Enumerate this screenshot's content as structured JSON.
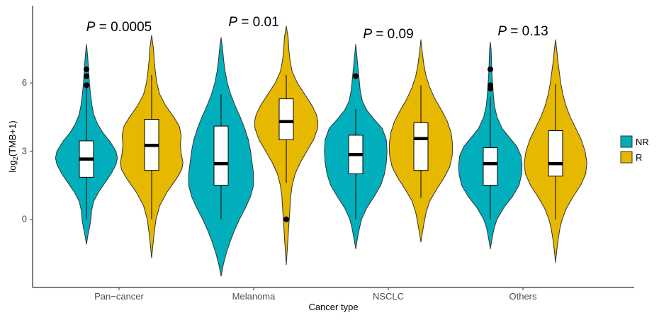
{
  "chart_data": {
    "type": "violin",
    "xlabel": "Cancer type",
    "ylabel_main": "log",
    "ylabel_sub": "2",
    "ylabel_rest": "(TMB+1)",
    "yticks": [
      0,
      3,
      6
    ],
    "ylim": [
      -3.0,
      9.4
    ],
    "categories": [
      "Pan−cancer",
      "Melanoma",
      "NSCLC",
      "Others"
    ],
    "legend": {
      "position": "right",
      "entries": [
        {
          "key": "NR",
          "label": "NR",
          "color": "#00AFBB"
        },
        {
          "key": "R",
          "label": "R",
          "color": "#E7B800"
        }
      ]
    },
    "p_letter": "P",
    "p_values": [
      "= 0.0005",
      "= 0.01",
      "= 0.09",
      "= 0.13"
    ],
    "groups": [
      {
        "category": "Pan−cancer",
        "NR": {
          "range": [
            -1.1,
            7.7
          ],
          "q1": 1.85,
          "median": 2.65,
          "q3": 3.45,
          "whisker": [
            0.0,
            5.9
          ],
          "outliers": [
            5.9,
            6.3,
            6.6
          ],
          "density": [
            [
              -1.1,
              0
            ],
            [
              -0.7,
              0.04
            ],
            [
              -0.3,
              0.09
            ],
            [
              0,
              0.12
            ],
            [
              0.4,
              0.14
            ],
            [
              0.8,
              0.2
            ],
            [
              1.2,
              0.33
            ],
            [
              1.6,
              0.5
            ],
            [
              2.0,
              0.67
            ],
            [
              2.4,
              0.8
            ],
            [
              2.7,
              0.84
            ],
            [
              3.0,
              0.8
            ],
            [
              3.4,
              0.65
            ],
            [
              3.8,
              0.45
            ],
            [
              4.2,
              0.3
            ],
            [
              4.6,
              0.2
            ],
            [
              5.0,
              0.15
            ],
            [
              5.5,
              0.11
            ],
            [
              6.0,
              0.08
            ],
            [
              6.5,
              0.06
            ],
            [
              7.0,
              0.04
            ],
            [
              7.4,
              0.02
            ],
            [
              7.7,
              0
            ]
          ]
        },
        "R": {
          "range": [
            -1.7,
            8.1
          ],
          "q1": 2.15,
          "median": 3.25,
          "q3": 4.4,
          "whisker": [
            0.0,
            6.35
          ],
          "outliers": [],
          "density": [
            [
              -1.7,
              0
            ],
            [
              -1.2,
              0.03
            ],
            [
              -0.6,
              0.07
            ],
            [
              0,
              0.12
            ],
            [
              0.6,
              0.22
            ],
            [
              1.2,
              0.42
            ],
            [
              1.8,
              0.68
            ],
            [
              2.2,
              0.82
            ],
            [
              2.5,
              0.85
            ],
            [
              2.9,
              0.8
            ],
            [
              3.3,
              0.78
            ],
            [
              3.7,
              0.8
            ],
            [
              4.1,
              0.75
            ],
            [
              4.5,
              0.6
            ],
            [
              5.0,
              0.38
            ],
            [
              5.5,
              0.22
            ],
            [
              6.0,
              0.14
            ],
            [
              6.5,
              0.1
            ],
            [
              7.0,
              0.07
            ],
            [
              7.5,
              0.05
            ],
            [
              8.1,
              0
            ]
          ]
        }
      },
      {
        "category": "Melanoma",
        "NR": {
          "range": [
            -2.5,
            8.0
          ],
          "q1": 1.5,
          "median": 2.45,
          "q3": 4.1,
          "whisker": [
            0.0,
            5.5
          ],
          "outliers": [],
          "density": [
            [
              -2.5,
              0
            ],
            [
              -2.0,
              0.06
            ],
            [
              -1.5,
              0.14
            ],
            [
              -1.0,
              0.24
            ],
            [
              -0.5,
              0.36
            ],
            [
              0,
              0.5
            ],
            [
              0.5,
              0.66
            ],
            [
              1.0,
              0.8
            ],
            [
              1.5,
              0.88
            ],
            [
              2.0,
              0.88
            ],
            [
              2.5,
              0.84
            ],
            [
              3.0,
              0.8
            ],
            [
              3.5,
              0.74
            ],
            [
              4.0,
              0.64
            ],
            [
              4.5,
              0.52
            ],
            [
              5.0,
              0.38
            ],
            [
              5.5,
              0.26
            ],
            [
              6.0,
              0.17
            ],
            [
              6.5,
              0.11
            ],
            [
              7.0,
              0.07
            ],
            [
              7.5,
              0.04
            ],
            [
              8.0,
              0
            ]
          ]
        },
        "R": {
          "range": [
            -2.0,
            8.5
          ],
          "q1": 3.5,
          "median": 4.3,
          "q3": 5.3,
          "whisker": [
            1.6,
            6.35
          ],
          "outliers": [
            0.0
          ],
          "density": [
            [
              -2.0,
              0
            ],
            [
              -1.5,
              0.02
            ],
            [
              -1.0,
              0.04
            ],
            [
              -0.5,
              0.06
            ],
            [
              0,
              0.08
            ],
            [
              0.5,
              0.1
            ],
            [
              1.0,
              0.12
            ],
            [
              1.5,
              0.16
            ],
            [
              2.0,
              0.24
            ],
            [
              2.5,
              0.38
            ],
            [
              3.0,
              0.56
            ],
            [
              3.5,
              0.74
            ],
            [
              4.0,
              0.85
            ],
            [
              4.3,
              0.86
            ],
            [
              4.6,
              0.82
            ],
            [
              5.0,
              0.7
            ],
            [
              5.5,
              0.5
            ],
            [
              6.0,
              0.3
            ],
            [
              6.5,
              0.16
            ],
            [
              7.0,
              0.1
            ],
            [
              7.5,
              0.07
            ],
            [
              8.0,
              0.05
            ],
            [
              8.5,
              0
            ]
          ]
        }
      },
      {
        "category": "NSCLC",
        "NR": {
          "range": [
            -1.3,
            7.7
          ],
          "q1": 2.0,
          "median": 2.85,
          "q3": 3.7,
          "whisker": [
            0.0,
            4.85
          ],
          "outliers": [
            6.3
          ],
          "density": [
            [
              -1.3,
              0
            ],
            [
              -0.9,
              0.04
            ],
            [
              -0.4,
              0.1
            ],
            [
              0,
              0.16
            ],
            [
              0.5,
              0.3
            ],
            [
              1.0,
              0.5
            ],
            [
              1.5,
              0.68
            ],
            [
              2.0,
              0.78
            ],
            [
              2.5,
              0.83
            ],
            [
              3.0,
              0.85
            ],
            [
              3.5,
              0.83
            ],
            [
              4.0,
              0.72
            ],
            [
              4.4,
              0.5
            ],
            [
              4.8,
              0.3
            ],
            [
              5.2,
              0.18
            ],
            [
              5.7,
              0.12
            ],
            [
              6.2,
              0.09
            ],
            [
              6.7,
              0.06
            ],
            [
              7.2,
              0.03
            ],
            [
              7.7,
              0
            ]
          ]
        },
        "R": {
          "range": [
            -1.0,
            7.9
          ],
          "q1": 2.15,
          "median": 3.55,
          "q3": 4.25,
          "whisker": [
            0.95,
            5.9
          ],
          "outliers": [],
          "density": [
            [
              -1.0,
              0
            ],
            [
              -0.6,
              0.04
            ],
            [
              -0.2,
              0.08
            ],
            [
              0.3,
              0.14
            ],
            [
              0.8,
              0.24
            ],
            [
              1.3,
              0.42
            ],
            [
              1.8,
              0.62
            ],
            [
              2.3,
              0.78
            ],
            [
              2.8,
              0.85
            ],
            [
              3.3,
              0.86
            ],
            [
              3.8,
              0.82
            ],
            [
              4.3,
              0.72
            ],
            [
              4.8,
              0.56
            ],
            [
              5.3,
              0.38
            ],
            [
              5.8,
              0.24
            ],
            [
              6.3,
              0.14
            ],
            [
              6.8,
              0.08
            ],
            [
              7.3,
              0.04
            ],
            [
              7.9,
              0
            ]
          ]
        }
      },
      {
        "category": "Others",
        "NR": {
          "range": [
            -1.3,
            7.8
          ],
          "q1": 1.5,
          "median": 2.45,
          "q3": 3.15,
          "whisker": [
            0.0,
            5.4
          ],
          "outliers": [
            5.75,
            5.9,
            6.6
          ],
          "density": [
            [
              -1.3,
              0
            ],
            [
              -0.9,
              0.04
            ],
            [
              -0.4,
              0.1
            ],
            [
              0,
              0.18
            ],
            [
              0.5,
              0.36
            ],
            [
              1.0,
              0.6
            ],
            [
              1.5,
              0.78
            ],
            [
              2.0,
              0.85
            ],
            [
              2.4,
              0.86
            ],
            [
              2.8,
              0.83
            ],
            [
              3.2,
              0.72
            ],
            [
              3.6,
              0.52
            ],
            [
              4.0,
              0.32
            ],
            [
              4.5,
              0.18
            ],
            [
              5.0,
              0.11
            ],
            [
              5.5,
              0.08
            ],
            [
              6.0,
              0.06
            ],
            [
              6.5,
              0.04
            ],
            [
              7.0,
              0.03
            ],
            [
              7.5,
              0.02
            ],
            [
              7.8,
              0
            ]
          ]
        },
        "R": {
          "range": [
            -1.9,
            7.9
          ],
          "q1": 1.9,
          "median": 2.45,
          "q3": 3.9,
          "whisker": [
            0.0,
            5.95
          ],
          "outliers": [],
          "density": [
            [
              -1.9,
              0
            ],
            [
              -1.4,
              0.03
            ],
            [
              -0.9,
              0.07
            ],
            [
              -0.4,
              0.12
            ],
            [
              0,
              0.18
            ],
            [
              0.5,
              0.3
            ],
            [
              1.0,
              0.48
            ],
            [
              1.5,
              0.68
            ],
            [
              2.0,
              0.82
            ],
            [
              2.5,
              0.85
            ],
            [
              3.0,
              0.8
            ],
            [
              3.5,
              0.7
            ],
            [
              4.0,
              0.55
            ],
            [
              4.5,
              0.4
            ],
            [
              5.0,
              0.28
            ],
            [
              5.5,
              0.2
            ],
            [
              6.0,
              0.14
            ],
            [
              6.5,
              0.1
            ],
            [
              7.0,
              0.06
            ],
            [
              7.5,
              0.03
            ],
            [
              7.9,
              0
            ]
          ]
        }
      }
    ]
  }
}
